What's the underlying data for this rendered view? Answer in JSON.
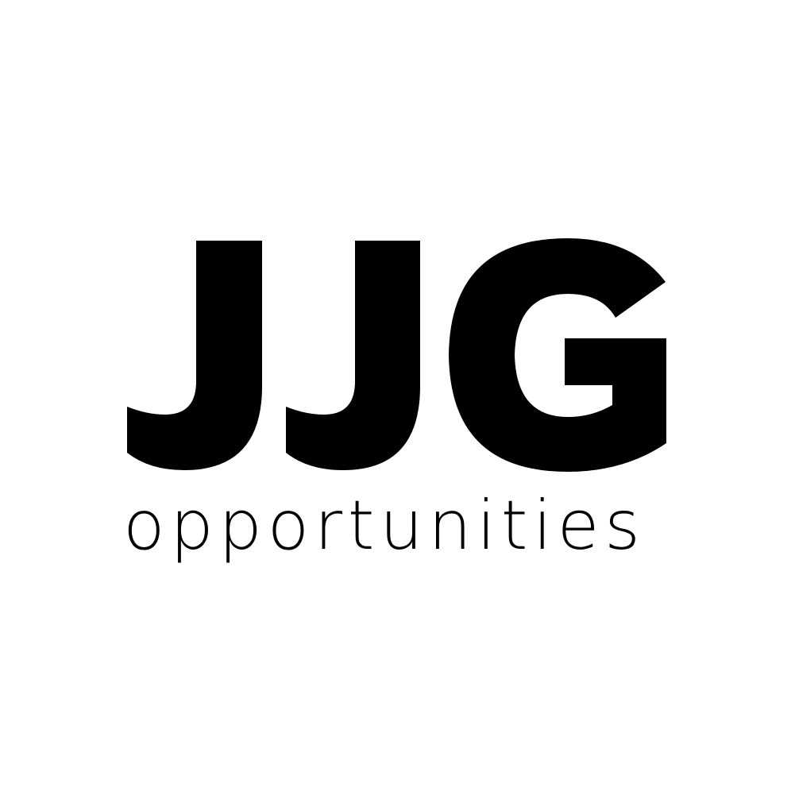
{
  "logo": {
    "wordmark": "JJG",
    "tagline": "opportunities",
    "color": "#000000",
    "background": "#ffffff"
  }
}
